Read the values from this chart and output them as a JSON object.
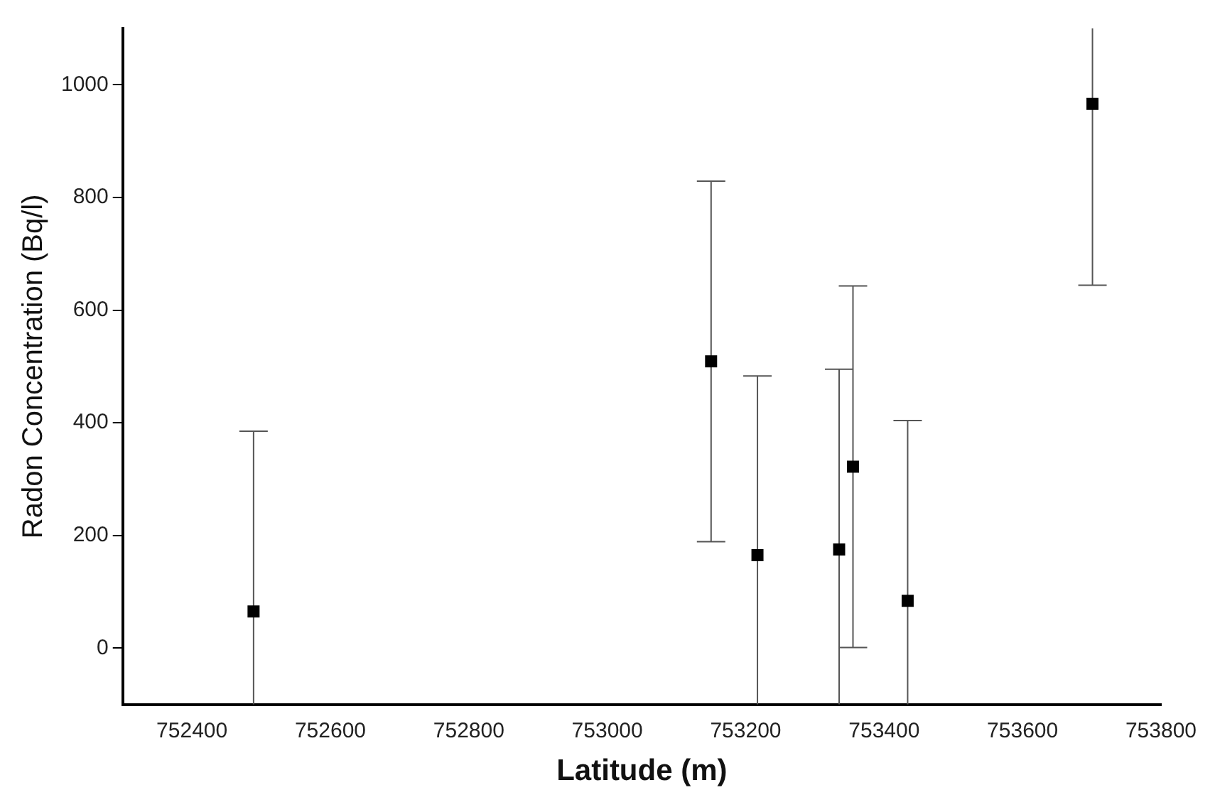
{
  "chart_data": {
    "type": "scatter",
    "xlabel": "Latitude (m)",
    "ylabel": "Radon Concentration (Bq/l)",
    "x": [
      752489,
      753150,
      753217,
      753335,
      753355,
      753434,
      753701
    ],
    "series": [
      {
        "color": "#000000",
        "values": [
          65,
          509,
          165,
          175,
          322,
          84,
          966
        ],
        "errors": [
          320,
          320,
          318,
          320,
          321,
          320,
          322
        ]
      }
    ],
    "xlim": [
      752300,
      753800
    ],
    "xticks": [
      752400,
      752600,
      752800,
      753000,
      753200,
      753400,
      753600,
      753800
    ],
    "ylim": [
      -100,
      1100
    ],
    "yticks": [
      0,
      200,
      400,
      600,
      800,
      1000
    ],
    "grid": false,
    "legend": false,
    "marker": "square"
  }
}
